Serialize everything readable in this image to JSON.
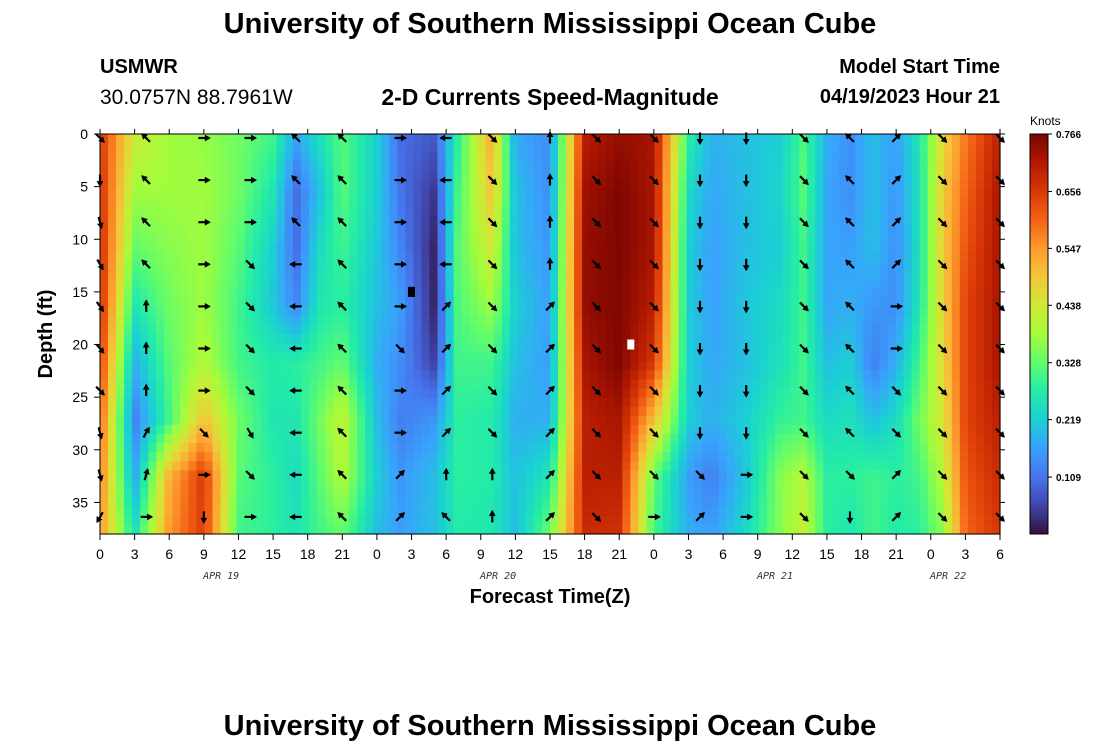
{
  "header": {
    "title": "University of Southern Mississippi Ocean Cube",
    "station": "USMWR",
    "coords": "30.0757N  88.7961W",
    "subtitle": "2-D Currents Speed-Magnitude",
    "model_label": "Model Start Time",
    "model_time": "04/19/2023 Hour 21"
  },
  "footer": {
    "title": "University of Southern Mississippi Ocean Cube"
  },
  "chart_data": {
    "type": "heatmap",
    "title": "2-D Currents Speed-Magnitude",
    "xlabel": "Forecast Time(Z)",
    "ylabel": "Depth (ft)",
    "x_range_hours": [
      0,
      78
    ],
    "ylim": [
      0,
      38
    ],
    "y_ticks": [
      0,
      5,
      10,
      15,
      20,
      25,
      30,
      35
    ],
    "x_ticks": [
      {
        "h": 0,
        "label": "0"
      },
      {
        "h": 3,
        "label": "3"
      },
      {
        "h": 6,
        "label": "6"
      },
      {
        "h": 9,
        "label": "9"
      },
      {
        "h": 12,
        "label": "12"
      },
      {
        "h": 15,
        "label": "15"
      },
      {
        "h": 18,
        "label": "18"
      },
      {
        "h": 21,
        "label": "21"
      },
      {
        "h": 24,
        "label": "0"
      },
      {
        "h": 27,
        "label": "3"
      },
      {
        "h": 30,
        "label": "6"
      },
      {
        "h": 33,
        "label": "9"
      },
      {
        "h": 36,
        "label": "12"
      },
      {
        "h": 39,
        "label": "15"
      },
      {
        "h": 42,
        "label": "18"
      },
      {
        "h": 45,
        "label": "21"
      },
      {
        "h": 48,
        "label": "0"
      },
      {
        "h": 51,
        "label": "3"
      },
      {
        "h": 54,
        "label": "6"
      },
      {
        "h": 57,
        "label": "9"
      },
      {
        "h": 60,
        "label": "12"
      },
      {
        "h": 63,
        "label": "15"
      },
      {
        "h": 66,
        "label": "18"
      },
      {
        "h": 69,
        "label": "21"
      },
      {
        "h": 72,
        "label": "0"
      },
      {
        "h": 75,
        "label": "3"
      },
      {
        "h": 78,
        "label": "6"
      }
    ],
    "date_labels": [
      {
        "h": 10.5,
        "label": "APR 19"
      },
      {
        "h": 34.5,
        "label": "APR 20"
      },
      {
        "h": 58.5,
        "label": "APR 21"
      },
      {
        "h": 73.5,
        "label": "APR 22"
      }
    ],
    "colorbar": {
      "label": "Knots",
      "min": 0.0,
      "max": 0.766,
      "ticks": [
        "0.766",
        "0.656",
        "0.547",
        "0.438",
        "0.328",
        "0.219",
        "0.109"
      ],
      "colors": [
        "#30123b",
        "#4145ab",
        "#4675ed",
        "#39a2fc",
        "#1bcfd4",
        "#24eca6",
        "#61fc6c",
        "#a4fc3b",
        "#d1e834",
        "#f3c63a",
        "#fe9b2d",
        "#f36315",
        "#d93806",
        "#b11901",
        "#7a0402"
      ]
    },
    "column_speeds_knots": [
      {
        "h": 0,
        "v": [
          0.66,
          0.67,
          0.68,
          0.68,
          0.65,
          0.61,
          0.58,
          0.55
        ]
      },
      {
        "h": 3,
        "v": [
          0.43,
          0.38,
          0.33,
          0.26,
          0.18,
          0.12,
          0.17,
          0.25
        ]
      },
      {
        "h": 6,
        "v": [
          0.38,
          0.38,
          0.36,
          0.34,
          0.32,
          0.3,
          0.52,
          0.55
        ]
      },
      {
        "h": 9,
        "v": [
          0.37,
          0.38,
          0.38,
          0.38,
          0.4,
          0.5,
          0.66,
          0.65
        ]
      },
      {
        "h": 12,
        "v": [
          0.34,
          0.34,
          0.32,
          0.3,
          0.3,
          0.34,
          0.32,
          0.3
        ]
      },
      {
        "h": 15,
        "v": [
          0.3,
          0.26,
          0.22,
          0.21,
          0.27,
          0.26,
          0.28,
          0.28
        ]
      },
      {
        "h": 17,
        "v": [
          0.17,
          0.1,
          0.1,
          0.13,
          0.28,
          0.26,
          0.24,
          0.26
        ]
      },
      {
        "h": 19,
        "v": [
          0.25,
          0.2,
          0.24,
          0.26,
          0.3,
          0.34,
          0.32,
          0.3
        ]
      },
      {
        "h": 21,
        "v": [
          0.32,
          0.32,
          0.3,
          0.28,
          0.33,
          0.42,
          0.4,
          0.33
        ]
      },
      {
        "h": 24,
        "v": [
          0.22,
          0.22,
          0.21,
          0.2,
          0.18,
          0.2,
          0.22,
          0.2
        ]
      },
      {
        "h": 26,
        "v": [
          0.1,
          0.11,
          0.13,
          0.16,
          0.14,
          0.12,
          0.15,
          0.16
        ]
      },
      {
        "h": 29,
        "v": [
          0.08,
          0.04,
          0.02,
          0.02,
          0.05,
          0.15,
          0.2,
          0.2
        ]
      },
      {
        "h": 31,
        "v": [
          0.28,
          0.3,
          0.32,
          0.31,
          0.3,
          0.28,
          0.28,
          0.27
        ]
      },
      {
        "h": 34,
        "v": [
          0.53,
          0.5,
          0.44,
          0.38,
          0.3,
          0.27,
          0.27,
          0.26
        ]
      },
      {
        "h": 36,
        "v": [
          0.17,
          0.2,
          0.2,
          0.22,
          0.2,
          0.18,
          0.2,
          0.2
        ]
      },
      {
        "h": 39,
        "v": [
          0.14,
          0.14,
          0.15,
          0.16,
          0.16,
          0.18,
          0.26,
          0.34
        ]
      },
      {
        "h": 42,
        "v": [
          0.7,
          0.73,
          0.74,
          0.74,
          0.72,
          0.7,
          0.7,
          0.68
        ]
      },
      {
        "h": 45,
        "v": [
          0.74,
          0.76,
          0.76,
          0.76,
          0.76,
          0.72,
          0.7,
          0.67
        ]
      },
      {
        "h": 48,
        "v": [
          0.72,
          0.72,
          0.72,
          0.7,
          0.66,
          0.5,
          0.33,
          0.3
        ]
      },
      {
        "h": 51,
        "v": [
          0.28,
          0.24,
          0.22,
          0.22,
          0.22,
          0.22,
          0.16,
          0.18
        ]
      },
      {
        "h": 53,
        "v": [
          0.18,
          0.17,
          0.16,
          0.16,
          0.17,
          0.18,
          0.12,
          0.16
        ]
      },
      {
        "h": 56,
        "v": [
          0.2,
          0.2,
          0.2,
          0.21,
          0.2,
          0.22,
          0.21,
          0.24
        ]
      },
      {
        "h": 59,
        "v": [
          0.22,
          0.23,
          0.22,
          0.24,
          0.25,
          0.29,
          0.36,
          0.36
        ]
      },
      {
        "h": 61,
        "v": [
          0.31,
          0.32,
          0.3,
          0.3,
          0.3,
          0.3,
          0.4,
          0.42
        ]
      },
      {
        "h": 63,
        "v": [
          0.18,
          0.17,
          0.17,
          0.17,
          0.2,
          0.24,
          0.28,
          0.28
        ]
      },
      {
        "h": 65,
        "v": [
          0.14,
          0.14,
          0.16,
          0.18,
          0.22,
          0.25,
          0.28,
          0.26
        ]
      },
      {
        "h": 67,
        "v": [
          0.2,
          0.2,
          0.2,
          0.15,
          0.12,
          0.2,
          0.3,
          0.3
        ]
      },
      {
        "h": 69,
        "v": [
          0.16,
          0.15,
          0.14,
          0.14,
          0.18,
          0.24,
          0.28,
          0.27
        ]
      },
      {
        "h": 71,
        "v": [
          0.26,
          0.25,
          0.25,
          0.26,
          0.3,
          0.34,
          0.3,
          0.28
        ]
      },
      {
        "h": 73,
        "v": [
          0.46,
          0.48,
          0.48,
          0.47,
          0.46,
          0.44,
          0.4,
          0.36
        ]
      },
      {
        "h": 75,
        "v": [
          0.58,
          0.6,
          0.62,
          0.64,
          0.64,
          0.64,
          0.62,
          0.6
        ]
      },
      {
        "h": 78,
        "v": [
          0.7,
          0.72,
          0.72,
          0.72,
          0.72,
          0.7,
          0.68,
          0.66
        ]
      }
    ],
    "vectors": {
      "hours": [
        0,
        4,
        9,
        13,
        17,
        21,
        26,
        30,
        34,
        39,
        43,
        48,
        52,
        56,
        61,
        65,
        69,
        73,
        78
      ],
      "depths": [
        0,
        4,
        8,
        12,
        16,
        20,
        24,
        28,
        32,
        36
      ],
      "direction_deg": [
        [
          135,
          180,
          165,
          150,
          145,
          140,
          135,
          165,
          165,
          210
        ],
        [
          315,
          315,
          315,
          315,
          0,
          0,
          0,
          30,
          15,
          90
        ],
        [
          90,
          90,
          90,
          90,
          90,
          90,
          90,
          135,
          90,
          180
        ],
        [
          90,
          90,
          90,
          135,
          135,
          135,
          135,
          150,
          135,
          90
        ],
        [
          315,
          315,
          315,
          270,
          270,
          270,
          270,
          270,
          270,
          270
        ],
        [
          315,
          315,
          315,
          315,
          315,
          315,
          315,
          315,
          315,
          315
        ],
        [
          90,
          90,
          90,
          90,
          90,
          135,
          90,
          90,
          45,
          45
        ],
        [
          270,
          270,
          270,
          270,
          45,
          45,
          45,
          45,
          0,
          315
        ],
        [
          135,
          135,
          135,
          135,
          135,
          135,
          135,
          135,
          0,
          0
        ],
        [
          0,
          0,
          0,
          0,
          45,
          45,
          45,
          45,
          45,
          45
        ],
        [
          135,
          135,
          135,
          135,
          135,
          135,
          135,
          135,
          135,
          135
        ],
        [
          135,
          135,
          135,
          135,
          135,
          135,
          135,
          135,
          135,
          90
        ],
        [
          180,
          180,
          180,
          180,
          180,
          180,
          180,
          180,
          135,
          45
        ],
        [
          180,
          180,
          180,
          180,
          180,
          180,
          180,
          180,
          90,
          90
        ],
        [
          135,
          135,
          135,
          135,
          135,
          135,
          135,
          135,
          135,
          135
        ],
        [
          315,
          315,
          315,
          315,
          315,
          315,
          315,
          315,
          135,
          180
        ],
        [
          45,
          45,
          45,
          45,
          90,
          90,
          135,
          135,
          45,
          45
        ],
        [
          135,
          135,
          135,
          135,
          135,
          135,
          135,
          135,
          135,
          135
        ],
        [
          135,
          135,
          135,
          135,
          135,
          135,
          135,
          135,
          135,
          135
        ]
      ]
    },
    "markers": [
      {
        "h": 27,
        "depth": 15,
        "color": "#000000"
      },
      {
        "h": 46,
        "depth": 20,
        "color": "#ffffff"
      }
    ]
  }
}
